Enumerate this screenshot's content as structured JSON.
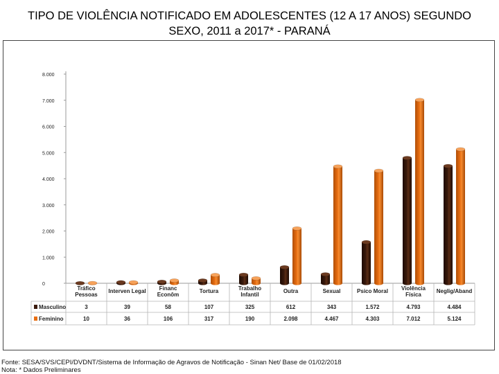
{
  "title_line1": "TIPO DE VIOLÊNCIA NOTIFICADO EM ADOLESCENTES (12 A 17 ANOS) SEGUNDO",
  "title_line2": "SEXO, 2011 a 2017* - PARANÁ",
  "footer_source": "Fonte: SESA/SVS/CEPI/DVDNT/Sistema de Informação de Agravos de Notificação - Sinan Net/ Base de 01/02/2018",
  "footer_note": "Nota: * Dados Preliminares",
  "colors": {
    "masculino": "#3a1a0c",
    "feminino": "#e86e12"
  },
  "chart_data": {
    "type": "bar",
    "categories": [
      [
        "Tráfico",
        "Pessoas"
      ],
      [
        "Interven Legal"
      ],
      [
        "Financ",
        "Econôm"
      ],
      [
        "Tortura"
      ],
      [
        "Trabalho",
        "Infantil"
      ],
      [
        "Outra"
      ],
      [
        "Sexual"
      ],
      [
        "Psico Moral"
      ],
      [
        "Violência",
        "Física"
      ],
      [
        "Neglig/Aband"
      ]
    ],
    "series": [
      {
        "name": "Masculino",
        "values": [
          3,
          39,
          58,
          107,
          325,
          612,
          343,
          1572,
          4793,
          4484
        ],
        "labels": [
          "3",
          "39",
          "58",
          "107",
          "325",
          "612",
          "343",
          "1.572",
          "4.793",
          "4.484"
        ]
      },
      {
        "name": "Feminino",
        "values": [
          10,
          36,
          106,
          317,
          190,
          2098,
          4467,
          4303,
          7012,
          5124
        ],
        "labels": [
          "10",
          "36",
          "106",
          "317",
          "190",
          "2.098",
          "4.467",
          "4.303",
          "7.012",
          "5.124"
        ]
      }
    ],
    "ylim": [
      0,
      8000
    ],
    "yticks": [
      0,
      1000,
      2000,
      3000,
      4000,
      5000,
      6000,
      7000,
      8000
    ],
    "ytick_labels": [
      "0",
      "1.000",
      "2.000",
      "3.000",
      "4.000",
      "5.000",
      "6.000",
      "7.000",
      "8.000"
    ],
    "legend": "table-below"
  }
}
